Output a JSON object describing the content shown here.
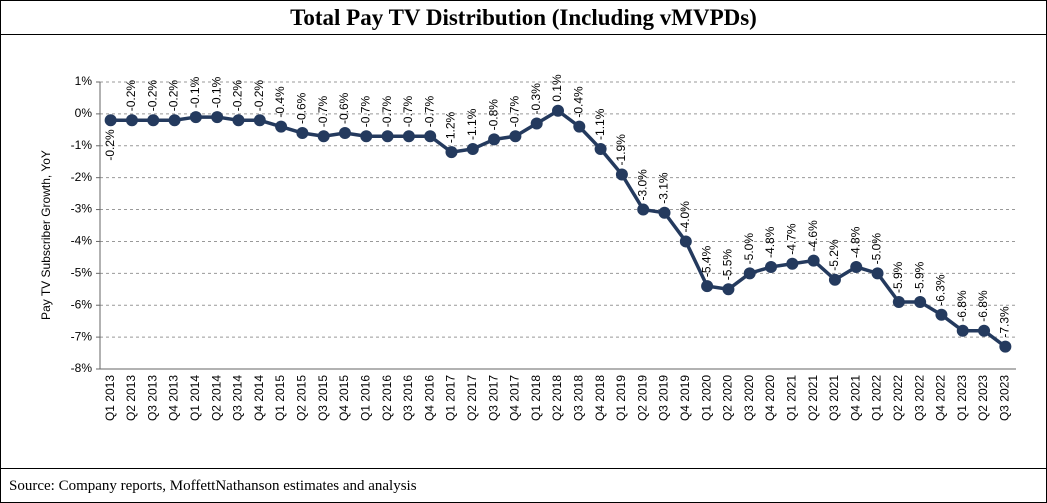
{
  "chart_data": {
    "type": "line",
    "title": "Total Pay TV Distribution (Including vMVPDs)",
    "y_label": "Pay TV Subscriber Growth, YoY",
    "source": "Source: Company reports, MoffettNathanson estimates and analysis",
    "categories": [
      "Q1 2013",
      "Q2 2013",
      "Q3 2013",
      "Q4 2013",
      "Q1 2014",
      "Q2 2014",
      "Q3 2014",
      "Q4 2014",
      "Q1 2015",
      "Q2 2015",
      "Q3 2015",
      "Q4 2015",
      "Q1 2016",
      "Q2 2016",
      "Q3 2016",
      "Q4 2016",
      "Q1 2017",
      "Q2 2017",
      "Q3 2017",
      "Q4 2017",
      "Q1 2018",
      "Q2 2018",
      "Q3 2018",
      "Q4 2018",
      "Q1 2019",
      "Q2 2019",
      "Q3 2019",
      "Q4 2019",
      "Q1 2020",
      "Q2 2020",
      "Q3 2020",
      "Q4 2020",
      "Q1 2021",
      "Q2 2021",
      "Q3 2021",
      "Q4 2021",
      "Q1 2022",
      "Q2 2022",
      "Q3 2022",
      "Q4 2022",
      "Q1 2023",
      "Q2 2023",
      "Q3 2023"
    ],
    "values": [
      -0.2,
      -0.2,
      -0.2,
      -0.2,
      -0.1,
      -0.1,
      -0.2,
      -0.2,
      -0.4,
      -0.6,
      -0.7,
      -0.6,
      -0.7,
      -0.7,
      -0.7,
      -0.7,
      -1.2,
      -1.1,
      -0.8,
      -0.7,
      -0.3,
      0.1,
      -0.4,
      -1.1,
      -1.9,
      -3.0,
      -3.1,
      -4.0,
      -5.4,
      -5.5,
      -5.0,
      -4.8,
      -4.7,
      -4.6,
      -5.2,
      -4.8,
      -5.0,
      -5.9,
      -5.9,
      -6.3,
      -6.8,
      -6.8,
      -7.3
    ],
    "value_labels": [
      "-0.2%",
      "-0.2%",
      "-0.2%",
      "-0.2%",
      "-0.1%",
      "-0.1%",
      "-0.2%",
      "-0.2%",
      "-0.4%",
      "-0.6%",
      "-0.7%",
      "-0.6%",
      "-0.7%",
      "-0.7%",
      "-0.7%",
      "-0.7%",
      "-1.2%",
      "-1.1%",
      "-0.8%",
      "-0.7%",
      "-0.3%",
      "0.1%",
      "-0.4%",
      "-1.1%",
      "-1.9%",
      "-3.0%",
      "-3.1%",
      "-4.0%",
      "-5.4%",
      "-5.5%",
      "-5.0%",
      "-4.8%",
      "-4.7%",
      "-4.6%",
      "-5.2%",
      "-4.8%",
      "-5.0%",
      "-5.9%",
      "-5.9%",
      "-6.3%",
      "-6.8%",
      "-6.8%",
      "-7.3%"
    ],
    "color": "#243a5e",
    "ylim": [
      -8,
      1
    ],
    "yticks": [
      {
        "value": 1,
        "label": "1%"
      },
      {
        "value": 0,
        "label": "0%"
      },
      {
        "value": -1,
        "label": "-1%"
      },
      {
        "value": -2,
        "label": "-2%"
      },
      {
        "value": -3,
        "label": "-3%"
      },
      {
        "value": -4,
        "label": "-4%"
      },
      {
        "value": -5,
        "label": "-5%"
      },
      {
        "value": -6,
        "label": "-6%"
      },
      {
        "value": -7,
        "label": "-7%"
      },
      {
        "value": -8,
        "label": "-8%"
      }
    ],
    "grid": true
  }
}
